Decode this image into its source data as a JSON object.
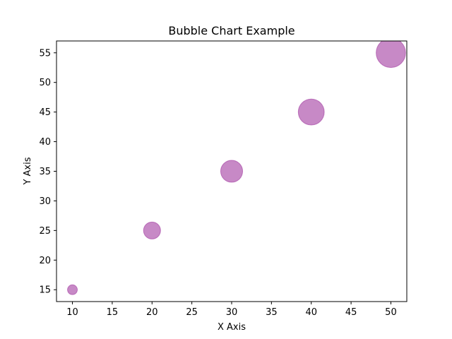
{
  "chart_data": {
    "type": "scatter",
    "title": "Bubble Chart Example",
    "xlabel": "X Axis",
    "ylabel": "Y Axis",
    "xlim": [
      8,
      52
    ],
    "ylim": [
      13,
      57
    ],
    "xticks": [
      10,
      15,
      20,
      25,
      30,
      35,
      40,
      45,
      50
    ],
    "yticks": [
      15,
      20,
      25,
      30,
      35,
      40,
      45,
      50,
      55
    ],
    "grid": false,
    "series": [
      {
        "x": [
          10,
          20,
          30,
          40,
          50
        ],
        "y": [
          15,
          25,
          35,
          45,
          55
        ],
        "sizes": [
          100,
          300,
          500,
          700,
          900
        ]
      }
    ],
    "colors": {
      "bubble_fill": "#a23aa0",
      "bubble_opacity": 0.6
    }
  }
}
